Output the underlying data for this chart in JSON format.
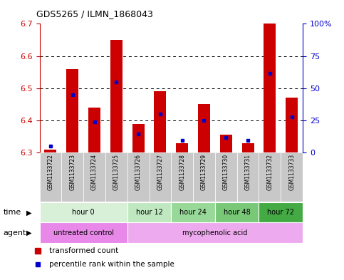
{
  "title": "GDS5265 / ILMN_1868043",
  "samples": [
    "GSM1133722",
    "GSM1133723",
    "GSM1133724",
    "GSM1133725",
    "GSM1133726",
    "GSM1133727",
    "GSM1133728",
    "GSM1133729",
    "GSM1133730",
    "GSM1133731",
    "GSM1133732",
    "GSM1133733"
  ],
  "red_values": [
    6.31,
    6.56,
    6.44,
    6.65,
    6.39,
    6.49,
    6.33,
    6.45,
    6.355,
    6.33,
    6.7,
    6.47
  ],
  "blue_values": [
    6.32,
    6.48,
    6.395,
    6.52,
    6.357,
    6.42,
    6.337,
    6.4,
    6.347,
    6.337,
    6.545,
    6.412
  ],
  "ymin": 6.3,
  "ymax": 6.7,
  "left_yticks": [
    6.3,
    6.4,
    6.5,
    6.6,
    6.7
  ],
  "right_ytick_vals": [
    6.3,
    6.4,
    6.5,
    6.6,
    6.7
  ],
  "right_ytick_labels": [
    "0",
    "25",
    "50",
    "75",
    "100%"
  ],
  "grid_yticks": [
    6.4,
    6.5,
    6.6
  ],
  "time_groups": [
    {
      "label": "hour 0",
      "start": 0,
      "end": 3,
      "color": "#d8efd8"
    },
    {
      "label": "hour 12",
      "start": 4,
      "end": 5,
      "color": "#c0e8c0"
    },
    {
      "label": "hour 24",
      "start": 6,
      "end": 7,
      "color": "#98d898"
    },
    {
      "label": "hour 48",
      "start": 8,
      "end": 9,
      "color": "#78c878"
    },
    {
      "label": "hour 72",
      "start": 10,
      "end": 11,
      "color": "#44aa44"
    }
  ],
  "agent_groups": [
    {
      "label": "untreated control",
      "start": 0,
      "end": 3,
      "color": "#e888e8"
    },
    {
      "label": "mycophenolic acid",
      "start": 4,
      "end": 11,
      "color": "#eeaaee"
    }
  ],
  "bar_color": "#cc0000",
  "blue_color": "#0000cc",
  "bar_width": 0.55,
  "tick_color_left": "#cc0000",
  "tick_color_right": "#0000cc",
  "legend_red": "transformed count",
  "legend_blue": "percentile rank within the sample",
  "sample_bg": "#c8c8c8",
  "fig_bg": "#ffffff"
}
